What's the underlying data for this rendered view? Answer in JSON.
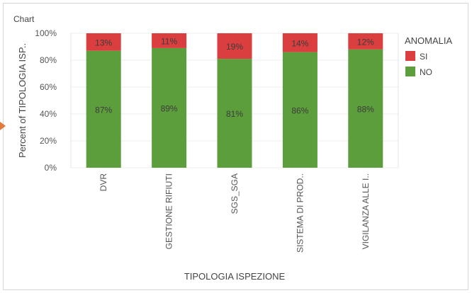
{
  "panel": {
    "title": "Chart"
  },
  "chart_data": {
    "type": "bar",
    "stacked": true,
    "categories": [
      "DVR",
      "GESTIONE RIFIUTI",
      "SGS_SGA",
      "SISTEMA DI PROD..",
      "VIGILANZA ALLE I.."
    ],
    "series": [
      {
        "name": "NO",
        "values": [
          87,
          89,
          81,
          86,
          88
        ],
        "color": "#5c9e3c"
      },
      {
        "name": "SI",
        "values": [
          13,
          11,
          19,
          14,
          12
        ],
        "color": "#da3e3e"
      }
    ],
    "xlabel": "TIPOLOGIA ISPEZIONE",
    "ylabel": "Percent of TIPOLOGIA ISP..",
    "ylim": [
      0,
      100
    ],
    "yticks": [
      0,
      20,
      40,
      60,
      80,
      100
    ],
    "ytick_labels": [
      "0%",
      "20%",
      "40%",
      "60%",
      "80%",
      "100%"
    ],
    "data_labels": [
      "13%",
      "87%",
      "11%",
      "89%",
      "19%",
      "81%",
      "14%",
      "86%",
      "12%",
      "88%"
    ],
    "legend": {
      "title": "ANOMALIA",
      "position": "right",
      "entries": [
        "SI",
        "NO"
      ]
    },
    "grid": true
  }
}
